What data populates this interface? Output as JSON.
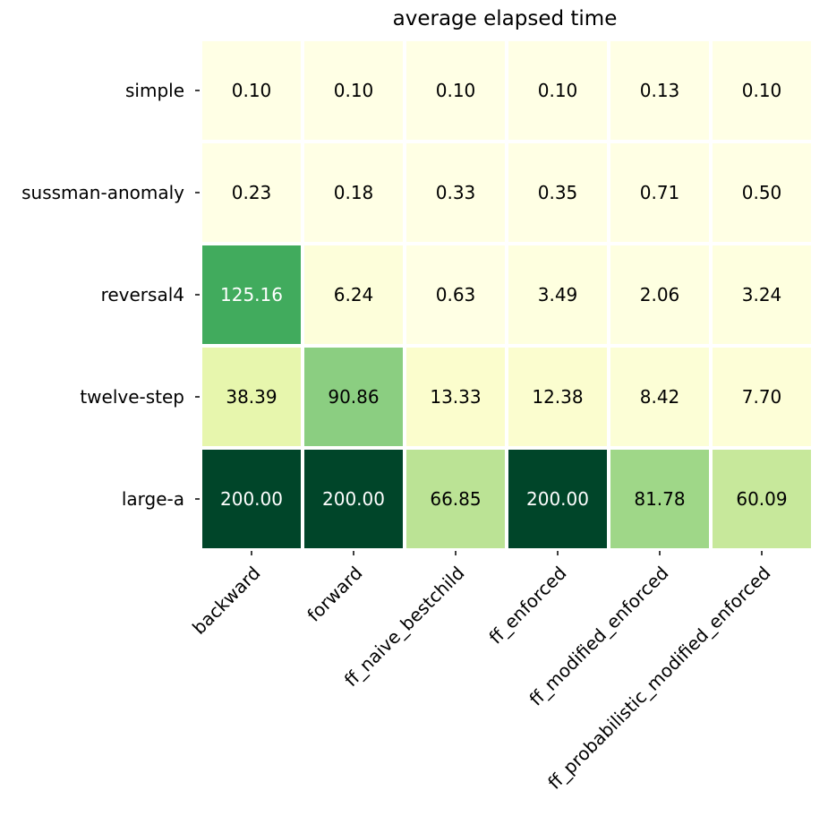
{
  "chart_data": {
    "type": "heatmap",
    "title": "average elapsed time",
    "xlabel": "",
    "ylabel": "",
    "columns": [
      "backward",
      "forward",
      "ff_naive_bestchild",
      "ff_enforced",
      "ff_modified_enforced",
      "ff_probabilistic_modified_enforced"
    ],
    "rows": [
      "simple",
      "sussman-anomaly",
      "reversal4",
      "twelve-step",
      "large-a"
    ],
    "values": [
      [
        0.1,
        0.1,
        0.1,
        0.1,
        0.13,
        0.1
      ],
      [
        0.23,
        0.18,
        0.33,
        0.35,
        0.71,
        0.5
      ],
      [
        125.16,
        6.24,
        0.63,
        3.49,
        2.06,
        3.24
      ],
      [
        38.39,
        90.86,
        13.33,
        12.38,
        8.42,
        7.7
      ],
      [
        200.0,
        200.0,
        66.85,
        200.0,
        81.78,
        60.09
      ]
    ],
    "value_range": [
      0,
      200
    ],
    "colormap": "YlGn",
    "colorbar": false,
    "grid": false,
    "cell_border_color": "#ffffff",
    "dark_text_color": "#000000",
    "light_text_color": "#ffffff"
  }
}
